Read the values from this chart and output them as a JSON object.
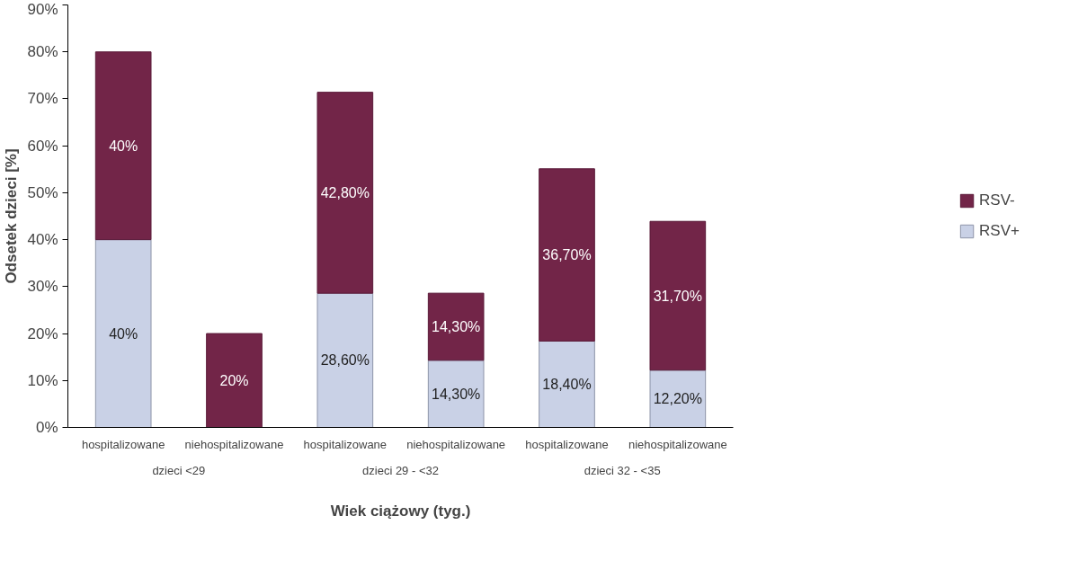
{
  "chart_data": {
    "type": "bar",
    "stacked": true,
    "ylabel": "Odsetek dzieci [%]",
    "xlabel": "Wiek ciążowy (tyg.)",
    "categories": [
      "hospitalizowane",
      "niehospitalizowane",
      "hospitalizowane",
      "niehospitalizowane",
      "hospitalizowane",
      "niehospitalizowane"
    ],
    "annotations": [
      "dzieci <29",
      "dzieci 29 - <32",
      "dzieci 32 - <35"
    ],
    "series": [
      {
        "name": "RSV+",
        "color": "#c9d1e6",
        "values": [
          40,
          null,
          28.6,
          14.3,
          18.4,
          12.2
        ],
        "value_labels": [
          "40%",
          null,
          "28,60%",
          "14,30%",
          "18,40%",
          "12,20%"
        ]
      },
      {
        "name": "RSV-",
        "color": "#722548",
        "values": [
          40,
          20,
          42.8,
          14.3,
          36.7,
          31.7
        ],
        "value_labels": [
          "40%",
          "20%",
          "42,80%",
          "14,30%",
          "36,70%",
          "31,70%"
        ]
      }
    ],
    "ylim": [
      0,
      90
    ],
    "yticks": [
      {
        "value": 0,
        "label": "0%"
      },
      {
        "value": 10,
        "label": "10%"
      },
      {
        "value": 20,
        "label": "20%"
      },
      {
        "value": 30,
        "label": "30%"
      },
      {
        "value": 40,
        "label": "40%"
      },
      {
        "value": 50,
        "label": "50%"
      },
      {
        "value": 60,
        "label": "60%"
      },
      {
        "value": 70,
        "label": "70%"
      },
      {
        "value": 80,
        "label": "80%"
      },
      {
        "value": 90,
        "label": "90%"
      }
    ],
    "grid": false,
    "legend": "right"
  }
}
